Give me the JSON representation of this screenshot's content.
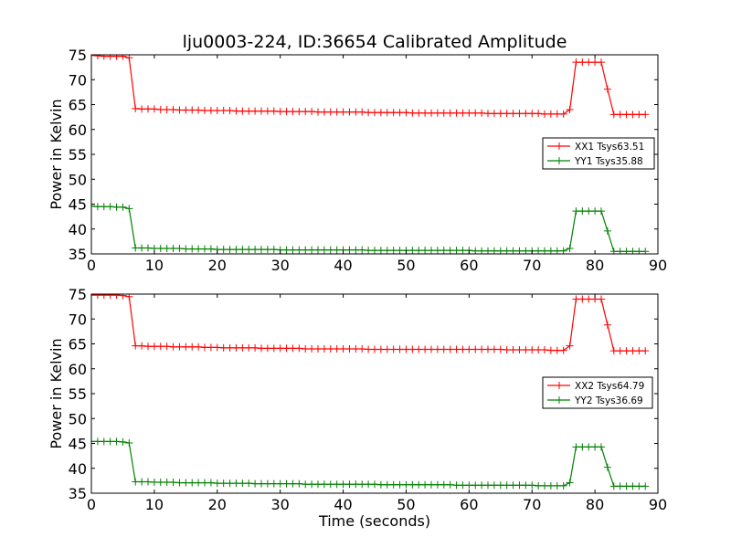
{
  "chart_data": {
    "type": "line",
    "title": "lju0003-224, ID:36654 Calibrated Amplitude",
    "xlabel": "Time (seconds)",
    "ylabel": "Power in Kelvin",
    "subplots": [
      {
        "xlim": [
          0,
          90
        ],
        "ylim": [
          35,
          75
        ],
        "xticks": [
          0,
          10,
          20,
          30,
          40,
          50,
          60,
          70,
          80,
          90
        ],
        "yticks": [
          35,
          40,
          45,
          50,
          55,
          60,
          65,
          70,
          75
        ],
        "legend_position": "right",
        "series": [
          {
            "name": "XX1 Tsys63.51",
            "color": "#ff0000",
            "x": [
              0,
              1,
              2,
              3,
              4,
              5,
              6,
              7,
              8,
              9,
              10,
              11,
              12,
              13,
              14,
              15,
              16,
              17,
              18,
              19,
              20,
              21,
              22,
              23,
              24,
              25,
              26,
              27,
              28,
              29,
              30,
              31,
              32,
              33,
              34,
              35,
              36,
              37,
              38,
              39,
              40,
              41,
              42,
              43,
              44,
              45,
              46,
              47,
              48,
              49,
              50,
              51,
              52,
              53,
              54,
              55,
              56,
              57,
              58,
              59,
              60,
              61,
              62,
              63,
              64,
              65,
              66,
              67,
              68,
              69,
              70,
              71,
              72,
              73,
              74,
              75,
              76,
              77,
              78,
              79,
              80,
              81,
              82,
              83,
              84,
              85,
              86,
              87,
              88
            ],
            "y": [
              74.9,
              74.8,
              74.7,
              74.7,
              74.7,
              74.7,
              74.4,
              64.2,
              64.1,
              64.1,
              64.1,
              64.0,
              64.0,
              64.0,
              63.9,
              63.9,
              63.9,
              63.9,
              63.8,
              63.8,
              63.8,
              63.8,
              63.8,
              63.7,
              63.7,
              63.7,
              63.7,
              63.7,
              63.7,
              63.7,
              63.6,
              63.6,
              63.6,
              63.6,
              63.6,
              63.6,
              63.5,
              63.5,
              63.5,
              63.5,
              63.5,
              63.5,
              63.5,
              63.5,
              63.4,
              63.4,
              63.4,
              63.4,
              63.4,
              63.4,
              63.4,
              63.3,
              63.3,
              63.3,
              63.3,
              63.3,
              63.3,
              63.3,
              63.3,
              63.3,
              63.3,
              63.3,
              63.3,
              63.2,
              63.2,
              63.2,
              63.2,
              63.2,
              63.2,
              63.2,
              63.2,
              63.2,
              63.1,
              63.1,
              63.1,
              63.1,
              64.0,
              73.5,
              73.5,
              73.5,
              73.5,
              73.5,
              68.1,
              63.0,
              63.0,
              63.0,
              63.0,
              63.0,
              63.0
            ]
          },
          {
            "name": "YY1 Tsys35.88",
            "color": "#008000",
            "x": [
              0,
              1,
              2,
              3,
              4,
              5,
              6,
              7,
              8,
              9,
              10,
              11,
              12,
              13,
              14,
              15,
              16,
              17,
              18,
              19,
              20,
              21,
              22,
              23,
              24,
              25,
              26,
              27,
              28,
              29,
              30,
              31,
              32,
              33,
              34,
              35,
              36,
              37,
              38,
              39,
              40,
              41,
              42,
              43,
              44,
              45,
              46,
              47,
              48,
              49,
              50,
              51,
              52,
              53,
              54,
              55,
              56,
              57,
              58,
              59,
              60,
              61,
              62,
              63,
              64,
              65,
              66,
              67,
              68,
              69,
              70,
              71,
              72,
              73,
              74,
              75,
              76,
              77,
              78,
              79,
              80,
              81,
              82,
              83,
              84,
              85,
              86,
              87,
              88
            ],
            "y": [
              44.6,
              44.5,
              44.5,
              44.5,
              44.4,
              44.4,
              44.1,
              36.2,
              36.2,
              36.2,
              36.1,
              36.1,
              36.1,
              36.1,
              36.1,
              36.0,
              36.0,
              36.0,
              36.0,
              36.0,
              35.9,
              35.9,
              35.9,
              35.9,
              35.9,
              35.9,
              35.9,
              35.9,
              35.9,
              35.9,
              35.8,
              35.8,
              35.8,
              35.8,
              35.8,
              35.8,
              35.8,
              35.8,
              35.8,
              35.8,
              35.8,
              35.8,
              35.8,
              35.8,
              35.7,
              35.7,
              35.7,
              35.7,
              35.7,
              35.7,
              35.7,
              35.7,
              35.7,
              35.7,
              35.7,
              35.7,
              35.7,
              35.7,
              35.7,
              35.7,
              35.7,
              35.6,
              35.6,
              35.6,
              35.6,
              35.6,
              35.6,
              35.6,
              35.6,
              35.6,
              35.6,
              35.6,
              35.6,
              35.6,
              35.6,
              35.6,
              36.1,
              43.6,
              43.6,
              43.6,
              43.6,
              43.6,
              39.6,
              35.5,
              35.5,
              35.5,
              35.5,
              35.5,
              35.5
            ]
          }
        ]
      },
      {
        "xlim": [
          0,
          90
        ],
        "ylim": [
          35,
          75
        ],
        "xticks": [
          0,
          10,
          20,
          30,
          40,
          50,
          60,
          70,
          80,
          90
        ],
        "yticks": [
          35,
          40,
          45,
          50,
          55,
          60,
          65,
          70,
          75
        ],
        "legend_position": "right",
        "series": [
          {
            "name": "XX2 Tsys64.79",
            "color": "#ff0000",
            "x": [
              0,
              1,
              2,
              3,
              4,
              5,
              6,
              7,
              8,
              9,
              10,
              11,
              12,
              13,
              14,
              15,
              16,
              17,
              18,
              19,
              20,
              21,
              22,
              23,
              24,
              25,
              26,
              27,
              28,
              29,
              30,
              31,
              32,
              33,
              34,
              35,
              36,
              37,
              38,
              39,
              40,
              41,
              42,
              43,
              44,
              45,
              46,
              47,
              48,
              49,
              50,
              51,
              52,
              53,
              54,
              55,
              56,
              57,
              58,
              59,
              60,
              61,
              62,
              63,
              64,
              65,
              66,
              67,
              68,
              69,
              70,
              71,
              72,
              73,
              74,
              75,
              76,
              77,
              78,
              79,
              80,
              81,
              82,
              83,
              84,
              85,
              86,
              87,
              88
            ],
            "y": [
              74.8,
              74.8,
              74.8,
              74.8,
              74.8,
              74.7,
              74.5,
              64.6,
              64.6,
              64.5,
              64.5,
              64.5,
              64.5,
              64.4,
              64.4,
              64.4,
              64.4,
              64.4,
              64.3,
              64.3,
              64.3,
              64.2,
              64.2,
              64.2,
              64.2,
              64.2,
              64.2,
              64.1,
              64.1,
              64.1,
              64.1,
              64.1,
              64.1,
              64.1,
              64.0,
              64.0,
              64.0,
              64.0,
              64.0,
              64.0,
              64.0,
              64.0,
              64.0,
              64.0,
              63.9,
              63.9,
              63.9,
              63.9,
              63.9,
              63.9,
              63.9,
              63.9,
              63.9,
              63.9,
              63.9,
              63.9,
              63.9,
              63.9,
              63.9,
              63.9,
              63.9,
              63.9,
              63.9,
              63.9,
              63.9,
              63.9,
              63.8,
              63.8,
              63.8,
              63.8,
              63.8,
              63.8,
              63.8,
              63.7,
              63.7,
              63.7,
              64.6,
              74.0,
              74.0,
              74.0,
              74.0,
              74.0,
              68.8,
              63.6,
              63.6,
              63.6,
              63.6,
              63.6,
              63.6
            ]
          },
          {
            "name": "YY2 Tsys36.69",
            "color": "#008000",
            "x": [
              0,
              1,
              2,
              3,
              4,
              5,
              6,
              7,
              8,
              9,
              10,
              11,
              12,
              13,
              14,
              15,
              16,
              17,
              18,
              19,
              20,
              21,
              22,
              23,
              24,
              25,
              26,
              27,
              28,
              29,
              30,
              31,
              32,
              33,
              34,
              35,
              36,
              37,
              38,
              39,
              40,
              41,
              42,
              43,
              44,
              45,
              46,
              47,
              48,
              49,
              50,
              51,
              52,
              53,
              54,
              55,
              56,
              57,
              58,
              59,
              60,
              61,
              62,
              63,
              64,
              65,
              66,
              67,
              68,
              69,
              70,
              71,
              72,
              73,
              74,
              75,
              76,
              77,
              78,
              79,
              80,
              81,
              82,
              83,
              84,
              85,
              86,
              87,
              88
            ],
            "y": [
              45.4,
              45.4,
              45.4,
              45.4,
              45.4,
              45.3,
              45.1,
              37.3,
              37.3,
              37.3,
              37.2,
              37.2,
              37.2,
              37.2,
              37.1,
              37.1,
              37.1,
              37.1,
              37.1,
              37.1,
              37.0,
              37.0,
              37.0,
              37.0,
              37.0,
              37.0,
              36.9,
              36.9,
              36.9,
              36.9,
              36.9,
              36.9,
              36.9,
              36.9,
              36.8,
              36.8,
              36.8,
              36.8,
              36.8,
              36.8,
              36.8,
              36.8,
              36.8,
              36.8,
              36.8,
              36.8,
              36.7,
              36.7,
              36.7,
              36.7,
              36.7,
              36.7,
              36.7,
              36.7,
              36.7,
              36.7,
              36.7,
              36.7,
              36.6,
              36.6,
              36.6,
              36.6,
              36.6,
              36.6,
              36.6,
              36.6,
              36.6,
              36.6,
              36.6,
              36.6,
              36.6,
              36.5,
              36.5,
              36.5,
              36.5,
              36.5,
              37.1,
              44.3,
              44.3,
              44.3,
              44.3,
              44.3,
              40.2,
              36.4,
              36.4,
              36.4,
              36.4,
              36.4,
              36.4
            ]
          }
        ]
      }
    ]
  }
}
